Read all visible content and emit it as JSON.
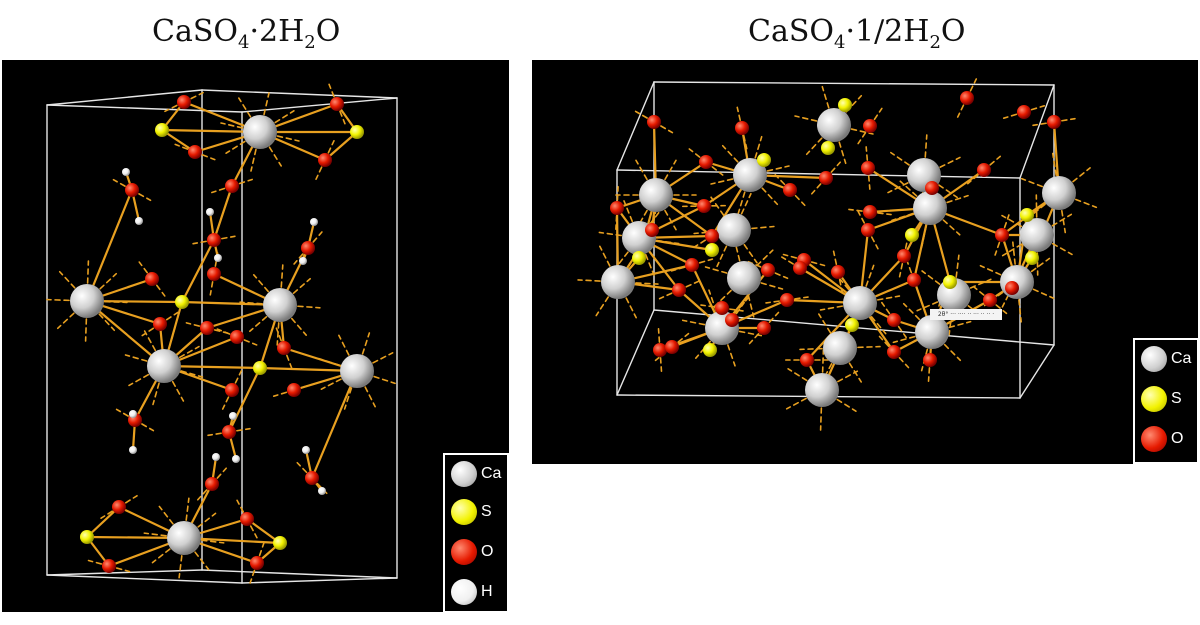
{
  "titles": {
    "left": {
      "base": "CaSO",
      "sub1": "4",
      "mid": "·2H",
      "sub2": "2",
      "end": "O"
    },
    "right": {
      "base": "CaSO",
      "sub1": "4",
      "mid": "·1/2H",
      "sub2": "2",
      "end": "O"
    }
  },
  "legend_left": [
    {
      "element": "Ca",
      "color": "#d8d8d8"
    },
    {
      "element": "S",
      "color": "#f2f200"
    },
    {
      "element": "O",
      "color": "#e61a00"
    },
    {
      "element": "H",
      "color": "#f4f4f4"
    }
  ],
  "legend_right": [
    {
      "element": "Ca",
      "color": "#d8d8d8"
    },
    {
      "element": "S",
      "color": "#f2f200"
    },
    {
      "element": "O",
      "color": "#e61a00"
    }
  ],
  "overlay_tag": "2θ° ··· ···· ·· ··· ·· ·· ·",
  "colors": {
    "bond": "#e8a020",
    "cell_edge": "#e6e6e6",
    "background": "#000000"
  }
}
